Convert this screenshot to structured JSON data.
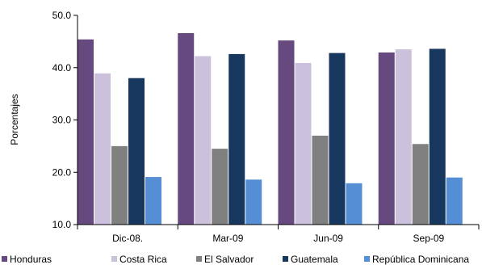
{
  "chart_data": {
    "type": "bar",
    "title": "",
    "xlabel": "",
    "ylabel": "Porcentajes",
    "ylim": [
      10,
      50
    ],
    "yticks": [
      "10.0",
      "20.0",
      "30.0",
      "40.0",
      "50.0"
    ],
    "grid": false,
    "legend_position": "bottom",
    "categories": [
      "Dic-08.",
      "Mar-09",
      "Jun-09",
      "Sep-09"
    ],
    "series": [
      {
        "name": "Honduras",
        "color": "#65497f",
        "values": [
          45.4,
          46.6,
          45.2,
          42.9
        ]
      },
      {
        "name": "Costa Rica",
        "color": "#cbc1dd",
        "values": [
          38.9,
          42.2,
          40.9,
          43.5
        ]
      },
      {
        "name": "El Salvador",
        "color": "#808080",
        "values": [
          25.0,
          24.5,
          27.0,
          25.4
        ]
      },
      {
        "name": "Guatemala",
        "color": "#17375e",
        "values": [
          38.0,
          42.6,
          42.8,
          43.6
        ]
      },
      {
        "name": "República Dominicana",
        "color": "#558ed5",
        "values": [
          19.1,
          18.6,
          17.9,
          19.0
        ]
      }
    ]
  }
}
